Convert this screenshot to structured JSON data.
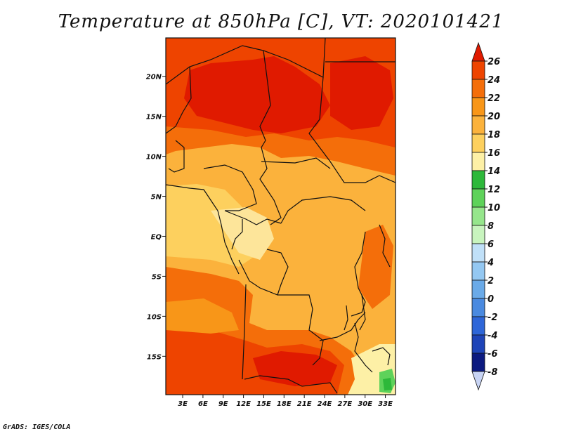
{
  "title": "Temperature at 850hPa [C], VT: 2020101421",
  "credit": "GrADS: IGES/COLA",
  "map": {
    "lat_labels": [
      "20N",
      "15N",
      "10N",
      "5N",
      "EQ",
      "5S",
      "10S",
      "15S"
    ],
    "lon_labels": [
      "3E",
      "6E",
      "9E",
      "12E",
      "15E",
      "18E",
      "21E",
      "24E",
      "27E",
      "30E",
      "33E"
    ],
    "lat_values": [
      20,
      15,
      10,
      5,
      0,
      -5,
      -10,
      -15
    ],
    "lon_values": [
      3,
      6,
      9,
      12,
      15,
      18,
      21,
      24,
      27,
      30,
      33
    ],
    "extent": {
      "lon": [
        0.5,
        34.5
      ],
      "lat": [
        -19.8,
        24.8
      ]
    }
  },
  "colorbar": {
    "labels": [
      "26",
      "24",
      "22",
      "20",
      "18",
      "16",
      "14",
      "12",
      "10",
      "8",
      "6",
      "4",
      "2",
      "0",
      "-2",
      "-4",
      "-6",
      "-8"
    ],
    "colors": [
      "#e01a00",
      "#ee4400",
      "#f46e0a",
      "#f89618",
      "#fbb23c",
      "#fdd05e",
      "#fdf0a6",
      "#2db83a",
      "#5ed25a",
      "#96e68c",
      "#c8f4be",
      "#c0e0f8",
      "#94c8f2",
      "#6aaae8",
      "#4a8ae0",
      "#2e66d8",
      "#1e44b8",
      "#0c1a80"
    ],
    "under_color": "#c8d4f4"
  }
}
